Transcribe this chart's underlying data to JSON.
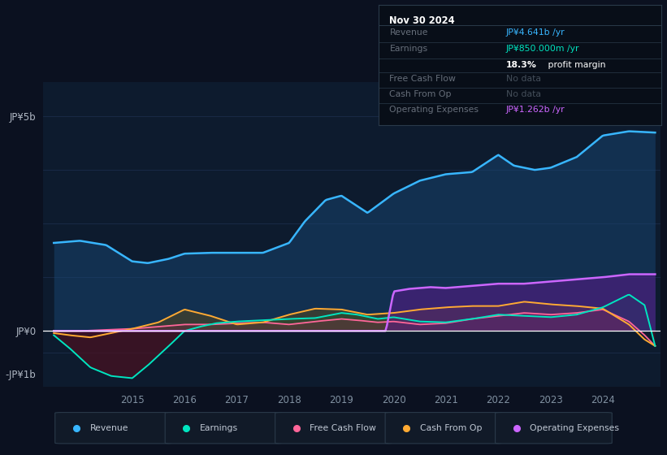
{
  "bg_color": "#0b1120",
  "plot_bg_color": "#0d1b2e",
  "grid_color": "#1e3050",
  "zero_line_color": "#ffffff",
  "ylim": [
    -1300000000.0,
    5800000000.0
  ],
  "xlim": [
    2013.3,
    2025.1
  ],
  "ytick_positions": [
    -1000000000.0,
    0,
    5000000000.0
  ],
  "ytick_labels": [
    "-JP¥1b",
    "JP¥0",
    "JP¥5b"
  ],
  "xtick_years": [
    2015,
    2016,
    2017,
    2018,
    2019,
    2020,
    2021,
    2022,
    2023,
    2024
  ],
  "legend_items": [
    {
      "label": "Revenue",
      "color": "#38b6ff"
    },
    {
      "label": "Earnings",
      "color": "#00e5c0"
    },
    {
      "label": "Free Cash Flow",
      "color": "#ff6699"
    },
    {
      "label": "Cash From Op",
      "color": "#ffaa33"
    },
    {
      "label": "Operating Expenses",
      "color": "#cc66ff"
    }
  ],
  "revenue_color": "#38b6ff",
  "revenue_fill": "#1a4a7a",
  "earnings_color": "#00e5c0",
  "earnings_fill": "#005544",
  "earnings_neg_fill": "#4a1020",
  "freecf_color": "#ff6699",
  "freecf_fill": "#882244",
  "cashop_color": "#ffaa33",
  "cashop_fill": "#7a5500",
  "opexp_color": "#cc66ff",
  "opexp_fill": "#5a1a8a",
  "info_bg": "#080e18",
  "info_border": "#2a3a4a",
  "info_title": "Nov 30 2024",
  "info_label_color": "#666e7a",
  "info_nodata_color": "#444e5a",
  "info_revenue_color": "#38b6ff",
  "info_earnings_color": "#00e5c0",
  "info_opexp_color": "#cc66ff"
}
